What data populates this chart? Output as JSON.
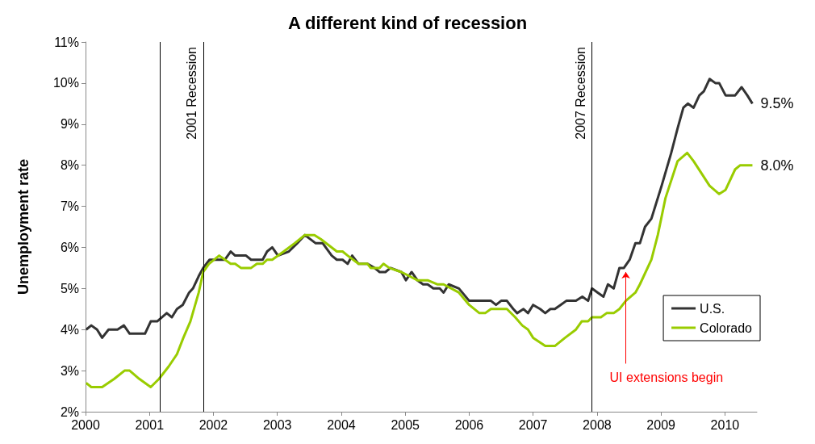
{
  "chart_data": {
    "type": "line",
    "title": "A different kind of recession",
    "ylabel": "Unemployment rate",
    "xlim": [
      2000,
      2010.5
    ],
    "xticks": [
      2000,
      2001,
      2002,
      2003,
      2004,
      2005,
      2006,
      2007,
      2008,
      2009,
      2010
    ],
    "ylim": [
      2,
      11
    ],
    "yticks": [
      {
        "value": 2,
        "label": "2%"
      },
      {
        "value": 3,
        "label": "3%"
      },
      {
        "value": 4,
        "label": "4%"
      },
      {
        "value": 5,
        "label": "5%"
      },
      {
        "value": 6,
        "label": "6%"
      },
      {
        "value": 7,
        "label": "7%"
      },
      {
        "value": 8,
        "label": "8%"
      },
      {
        "value": 9,
        "label": "9%"
      },
      {
        "value": 10,
        "label": "10%"
      },
      {
        "value": 11,
        "label": "11%"
      }
    ],
    "grid": false,
    "legend": "bottom right",
    "marker": "none",
    "series": [
      {
        "name": "U.S.",
        "color": "#333333",
        "x": [
          2000.01,
          2000.09,
          2000.18,
          2000.26,
          2000.36,
          2000.5,
          2000.6,
          2000.69,
          2000.93,
          2001.02,
          2001.12,
          2001.27,
          2001.35,
          2001.43,
          2001.52,
          2001.62,
          2001.68,
          2001.77,
          2001.84,
          2001.94,
          2002.18,
          2002.27,
          2002.34,
          2002.51,
          2002.59,
          2002.77,
          2002.84,
          2002.92,
          2003.01,
          2003.18,
          2003.31,
          2003.43,
          2003.6,
          2003.71,
          2003.85,
          2003.93,
          2004.02,
          2004.1,
          2004.17,
          2004.27,
          2004.41,
          2004.52,
          2004.6,
          2004.69,
          2004.77,
          2004.94,
          2005.01,
          2005.1,
          2005.19,
          2005.28,
          2005.35,
          2005.44,
          2005.54,
          2005.6,
          2005.68,
          2005.84,
          2006.0,
          2006.34,
          2006.42,
          2006.5,
          2006.59,
          2006.69,
          2006.75,
          2006.85,
          2006.92,
          2007.0,
          2007.11,
          2007.19,
          2007.27,
          2007.34,
          2007.43,
          2007.52,
          2007.67,
          2007.77,
          2007.86,
          2007.92,
          2008.01,
          2008.1,
          2008.17,
          2008.26,
          2008.35,
          2008.42,
          2008.51,
          2008.6,
          2008.67,
          2008.75,
          2008.85,
          2009.01,
          2009.16,
          2009.26,
          2009.35,
          2009.42,
          2009.51,
          2009.6,
          2009.67,
          2009.76,
          2009.85,
          2009.91,
          2010.01,
          2010.16,
          2010.26,
          2010.35,
          2010.43
        ],
        "values": [
          4.0,
          4.1,
          4.0,
          3.8,
          4.0,
          4.0,
          4.1,
          3.9,
          3.9,
          4.2,
          4.2,
          4.4,
          4.3,
          4.5,
          4.6,
          4.9,
          5.0,
          5.3,
          5.5,
          5.7,
          5.7,
          5.9,
          5.8,
          5.8,
          5.7,
          5.7,
          5.9,
          6.0,
          5.8,
          5.9,
          6.1,
          6.3,
          6.1,
          6.1,
          5.8,
          5.7,
          5.7,
          5.6,
          5.8,
          5.6,
          5.6,
          5.5,
          5.4,
          5.4,
          5.5,
          5.4,
          5.2,
          5.4,
          5.2,
          5.1,
          5.1,
          5.0,
          5.0,
          4.9,
          5.1,
          5.0,
          4.7,
          4.7,
          4.6,
          4.7,
          4.7,
          4.5,
          4.4,
          4.5,
          4.4,
          4.6,
          4.5,
          4.4,
          4.5,
          4.5,
          4.6,
          4.7,
          4.7,
          4.8,
          4.7,
          5.0,
          4.9,
          4.8,
          5.1,
          5.0,
          5.5,
          5.5,
          5.7,
          6.1,
          6.1,
          6.5,
          6.7,
          7.5,
          8.3,
          8.9,
          9.4,
          9.5,
          9.4,
          9.7,
          9.8,
          10.1,
          10.0,
          10.0,
          9.7,
          9.7,
          9.9,
          9.7,
          9.5
        ],
        "value_labels": [
          null,
          null,
          null,
          null,
          null,
          null,
          null,
          null,
          null,
          null,
          null,
          null,
          null,
          null,
          null,
          null,
          null,
          null,
          null,
          null,
          null,
          null,
          null,
          null,
          null,
          null,
          null,
          null,
          null,
          null,
          null,
          null,
          null,
          null,
          null,
          null,
          null,
          null,
          null,
          null,
          null,
          null,
          null,
          null,
          null,
          null,
          null,
          null,
          null,
          null,
          null,
          null,
          null,
          null,
          null,
          null,
          null,
          null,
          null,
          null,
          null,
          null,
          null,
          null,
          null,
          null,
          null,
          null,
          null,
          null,
          null,
          null,
          null,
          null,
          null,
          null,
          null,
          null,
          null,
          null,
          null,
          null,
          null,
          null,
          null,
          null,
          null,
          null,
          null,
          null,
          null,
          null,
          null,
          null,
          null,
          null,
          null,
          null,
          null,
          null,
          null,
          null,
          "9.5%"
        ]
      },
      {
        "name": "Colorado",
        "color": "#99cc00",
        "x": [
          2000.01,
          2000.09,
          2000.26,
          2000.45,
          2000.61,
          2000.69,
          2000.84,
          2001.02,
          2001.15,
          2001.3,
          2001.43,
          2001.53,
          2001.64,
          2001.77,
          2001.84,
          2001.93,
          2002.09,
          2002.27,
          2002.34,
          2002.43,
          2002.59,
          2002.68,
          2002.77,
          2002.84,
          2002.92,
          2003.1,
          2003.27,
          2003.43,
          2003.58,
          2003.68,
          2003.93,
          2004.02,
          2004.1,
          2004.27,
          2004.41,
          2004.46,
          2004.6,
          2004.66,
          2004.75,
          2004.94,
          2005.19,
          2005.35,
          2005.5,
          2005.6,
          2005.84,
          2006.0,
          2006.16,
          2006.25,
          2006.34,
          2006.59,
          2006.72,
          2006.83,
          2006.92,
          2007.0,
          2007.19,
          2007.34,
          2007.5,
          2007.67,
          2007.76,
          2007.86,
          2007.92,
          2008.06,
          2008.15,
          2008.26,
          2008.35,
          2008.45,
          2008.6,
          2008.67,
          2008.85,
          2008.95,
          2009.07,
          2009.26,
          2009.41,
          2009.51,
          2009.76,
          2009.91,
          2010.01,
          2010.16,
          2010.24,
          2010.43
        ],
        "values": [
          2.7,
          2.6,
          2.6,
          2.8,
          3.0,
          3.0,
          2.8,
          2.6,
          2.8,
          3.1,
          3.4,
          3.8,
          4.2,
          4.9,
          5.4,
          5.6,
          5.8,
          5.6,
          5.6,
          5.5,
          5.5,
          5.6,
          5.6,
          5.7,
          5.7,
          5.9,
          6.1,
          6.3,
          6.3,
          6.2,
          5.9,
          5.9,
          5.8,
          5.6,
          5.6,
          5.5,
          5.5,
          5.6,
          5.5,
          5.4,
          5.2,
          5.2,
          5.1,
          5.1,
          4.9,
          4.6,
          4.4,
          4.4,
          4.5,
          4.5,
          4.3,
          4.1,
          4.0,
          3.8,
          3.6,
          3.6,
          3.8,
          4.0,
          4.2,
          4.2,
          4.3,
          4.3,
          4.4,
          4.4,
          4.5,
          4.7,
          4.9,
          5.1,
          5.7,
          6.3,
          7.2,
          8.1,
          8.3,
          8.1,
          7.5,
          7.3,
          7.4,
          7.9,
          8.0,
          8.0
        ],
        "value_labels": [
          null,
          null,
          null,
          null,
          null,
          null,
          null,
          null,
          null,
          null,
          null,
          null,
          null,
          null,
          null,
          null,
          null,
          null,
          null,
          null,
          null,
          null,
          null,
          null,
          null,
          null,
          null,
          null,
          null,
          null,
          null,
          null,
          null,
          null,
          null,
          null,
          null,
          null,
          null,
          null,
          null,
          null,
          null,
          null,
          null,
          null,
          null,
          null,
          null,
          null,
          null,
          null,
          null,
          null,
          null,
          null,
          null,
          null,
          null,
          null,
          null,
          null,
          null,
          null,
          null,
          null,
          null,
          null,
          null,
          null,
          null,
          null,
          null,
          null,
          null,
          null,
          null,
          null,
          null,
          "8.0%"
        ]
      }
    ],
    "ref_lines": [
      {
        "axis": "x",
        "value": 2001.17,
        "label": null
      },
      {
        "axis": "x",
        "value": 2001.84,
        "label": "2001 Recession"
      },
      {
        "axis": "x",
        "value": 2007.92,
        "label": "2007 Recession"
      }
    ],
    "annotations": [
      {
        "text": "UI extensions begin",
        "x": 2008.45,
        "y": 5.4
      }
    ]
  }
}
